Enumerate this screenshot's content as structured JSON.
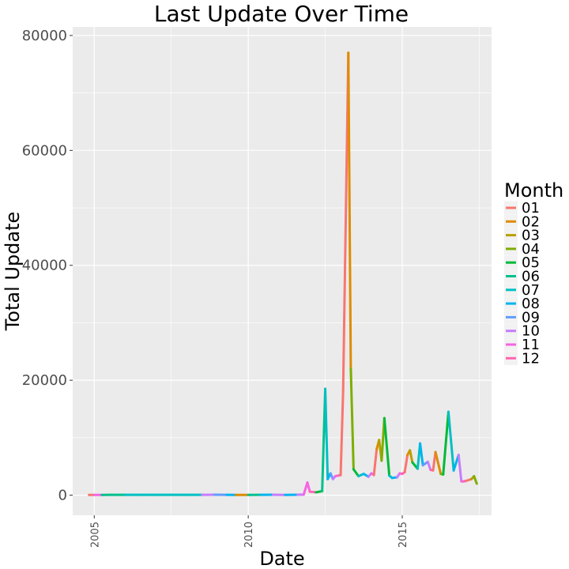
{
  "chart_data": {
    "type": "line",
    "title": "Last Update Over Time",
    "xlabel": "Date",
    "ylabel": "Total Update",
    "x_ticks": [
      "2005",
      "2010",
      "2015"
    ],
    "y_ticks": [
      "0",
      "20000",
      "40000",
      "60000",
      "80000"
    ],
    "xlim": [
      2004.3,
      2017.9
    ],
    "ylim": [
      -3500,
      81500
    ],
    "grid": true,
    "legend": {
      "title": "Month",
      "placement": "right",
      "entries": [
        {
          "label": "01",
          "color": "#F8766D"
        },
        {
          "label": "02",
          "color": "#DE8C00"
        },
        {
          "label": "03",
          "color": "#B79F00"
        },
        {
          "label": "04",
          "color": "#7CAE00"
        },
        {
          "label": "05",
          "color": "#00BA38"
        },
        {
          "label": "06",
          "color": "#00C08B"
        },
        {
          "label": "07",
          "color": "#00BFC4"
        },
        {
          "label": "08",
          "color": "#00B4F0"
        },
        {
          "label": "09",
          "color": "#619CFF"
        },
        {
          "label": "10",
          "color": "#C77CFF"
        },
        {
          "label": "11",
          "color": "#F564E3"
        },
        {
          "label": "12",
          "color": "#FF64B0"
        }
      ]
    },
    "series": [
      {
        "x": [
          2004.83,
          2005.0,
          2005.25,
          2005.5,
          2006.0,
          2006.5,
          2007.0,
          2007.5,
          2008.0,
          2008.5,
          2008.9,
          2009.3,
          2009.6,
          2010.0,
          2010.4,
          2010.8,
          2011.2,
          2011.6,
          2011.8,
          2011.92,
          2012.0,
          2012.2,
          2012.4,
          2012.5,
          2012.58,
          2012.67,
          2012.75,
          2012.83,
          2012.92,
          2013.0,
          2013.08,
          2013.25,
          2013.33,
          2013.42,
          2013.58,
          2013.75,
          2013.9,
          2014.0,
          2014.08,
          2014.17,
          2014.25,
          2014.33,
          2014.42,
          2014.58,
          2014.67,
          2014.83,
          2014.92,
          2015.0,
          2015.08,
          2015.17,
          2015.25,
          2015.33,
          2015.5,
          2015.58,
          2015.67,
          2015.83,
          2015.92,
          2016.0,
          2016.08,
          2016.25,
          2016.33,
          2016.5,
          2016.67,
          2016.83,
          2016.92,
          2017.0,
          2017.08,
          2017.25,
          2017.33,
          2017.42
        ],
        "y": [
          50,
          50,
          50,
          60,
          60,
          60,
          60,
          60,
          60,
          60,
          80,
          60,
          40,
          50,
          60,
          70,
          40,
          80,
          100,
          2200,
          600,
          500,
          700,
          18500,
          2800,
          3800,
          2800,
          3300,
          3400,
          3500,
          18000,
          77000,
          22000,
          4500,
          3300,
          3700,
          3200,
          3800,
          3500,
          8000,
          9600,
          6000,
          13400,
          3400,
          3000,
          3100,
          3800,
          3700,
          4000,
          7000,
          7800,
          5700,
          4600,
          9000,
          5200,
          5800,
          4400,
          4300,
          7500,
          3700,
          3600,
          14500,
          4300,
          7000,
          2400,
          2400,
          2500,
          2800,
          3300,
          2000
        ],
        "colors": [
          "#F8766D",
          "#F564E3",
          "#00C08B",
          "#00C08B",
          "#00BFC4",
          "#00BFC4",
          "#00BFC4",
          "#00BFC4",
          "#00BFC4",
          "#C77CFF",
          "#619CFF",
          "#00B4F0",
          "#DE8C00",
          "#00C08B",
          "#00B4F0",
          "#C77CFF",
          "#00B4F0",
          "#C77CFF",
          "#F564E3",
          "#F564E3",
          "#FF64B0",
          "#00BA38",
          "#00C08B",
          "#00BFC4",
          "#00B4F0",
          "#619CFF",
          "#C77CFF",
          "#F564E3",
          "#FF64B0",
          "#F8766D",
          "#F8766D",
          "#DE8C00",
          "#7CAE00",
          "#00BA38",
          "#00BFC4",
          "#00B4F0",
          "#C77CFF",
          "#F564E3",
          "#F8766D",
          "#DE8C00",
          "#B79F00",
          "#7CAE00",
          "#00BA38",
          "#00BFC4",
          "#00B4F0",
          "#C77CFF",
          "#F564E3",
          "#FF64B0",
          "#F8766D",
          "#DE8C00",
          "#B79F00",
          "#00BA38",
          "#00BFC4",
          "#00B4F0",
          "#619CFF",
          "#C77CFF",
          "#FF64B0",
          "#F8766D",
          "#DE8C00",
          "#7CAE00",
          "#00BA38",
          "#00BFC4",
          "#00B4F0",
          "#C77CFF",
          "#F564E3",
          "#FF64B0",
          "#F8766D",
          "#B79F00",
          "#7CAE00",
          "#00BA38"
        ]
      }
    ]
  }
}
